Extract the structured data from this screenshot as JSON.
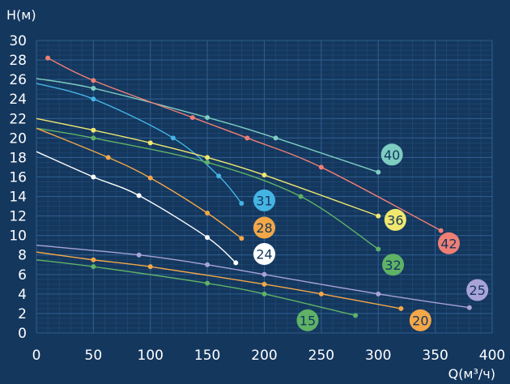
{
  "chart_data": {
    "type": "line",
    "xlabel": "Q(м³/ч)",
    "ylabel": "Н(м)",
    "xlim": [
      0,
      400
    ],
    "ylim": [
      0,
      30
    ],
    "x_ticks": [
      0,
      50,
      100,
      150,
      200,
      250,
      300,
      350,
      400
    ],
    "y_ticks": [
      0,
      2,
      4,
      6,
      8,
      10,
      12,
      14,
      16,
      18,
      20,
      22,
      24,
      26,
      28,
      30
    ],
    "grid": true,
    "background": "#14375e",
    "grid_color": "#2f5f8f",
    "series": [
      {
        "name": "40",
        "color": "#7ecdc1",
        "x": [
          0,
          50,
          150,
          210,
          300
        ],
        "y": [
          26.1,
          25.1,
          22.1,
          20.0,
          16.5
        ],
        "label_at": [
          312,
          18.3
        ]
      },
      {
        "name": "42",
        "color": "#ef7f74",
        "x": [
          10,
          50,
          137,
          185,
          250,
          355
        ],
        "y": [
          28.2,
          25.9,
          22.1,
          20.0,
          17.0,
          10.5
        ],
        "label_at": [
          362,
          9.2
        ]
      },
      {
        "name": "31",
        "color": "#44b4e4",
        "x": [
          0,
          50,
          120,
          160,
          180
        ],
        "y": [
          25.6,
          24.0,
          20.0,
          16.1,
          13.3
        ],
        "label_at": [
          200,
          13.6
        ]
      },
      {
        "name": "36",
        "color": "#f0e86e",
        "x": [
          0,
          50,
          100,
          150,
          200,
          300
        ],
        "y": [
          22.0,
          20.8,
          19.5,
          18.0,
          16.2,
          12.0
        ],
        "label_at": [
          315,
          11.6
        ]
      },
      {
        "name": "32",
        "color": "#5fb266",
        "x": [
          0,
          50,
          150,
          232,
          300
        ],
        "y": [
          21.0,
          20.0,
          17.5,
          14.0,
          8.6
        ],
        "label_at": [
          313,
          7.0
        ]
      },
      {
        "name": "28",
        "color": "#f4a748",
        "x": [
          0,
          63,
          100,
          150,
          180
        ],
        "y": [
          21.0,
          18.0,
          15.9,
          12.3,
          9.7
        ],
        "label_at": [
          200,
          10.8
        ]
      },
      {
        "name": "24",
        "color": "#ffffff",
        "x": [
          0,
          50,
          90,
          150,
          175
        ],
        "y": [
          18.6,
          16.0,
          14.1,
          9.8,
          7.2
        ],
        "label_at": [
          200,
          8.1
        ]
      },
      {
        "name": "25",
        "color": "#a8a3d8",
        "x": [
          0,
          90,
          150,
          200,
          300,
          380
        ],
        "y": [
          9.0,
          8.0,
          7.0,
          6.0,
          4.0,
          2.6
        ],
        "label_at": [
          387,
          4.4
        ]
      },
      {
        "name": "20",
        "color": "#f4a748",
        "x": [
          0,
          50,
          100,
          200,
          250,
          320
        ],
        "y": [
          8.3,
          7.5,
          6.8,
          5.0,
          4.0,
          2.5
        ],
        "label_at": [
          337,
          1.3
        ]
      },
      {
        "name": "15",
        "color": "#5fb266",
        "x": [
          0,
          50,
          150,
          200,
          280
        ],
        "y": [
          7.5,
          6.8,
          5.1,
          4.0,
          1.8
        ],
        "label_at": [
          238,
          1.3
        ]
      }
    ]
  }
}
